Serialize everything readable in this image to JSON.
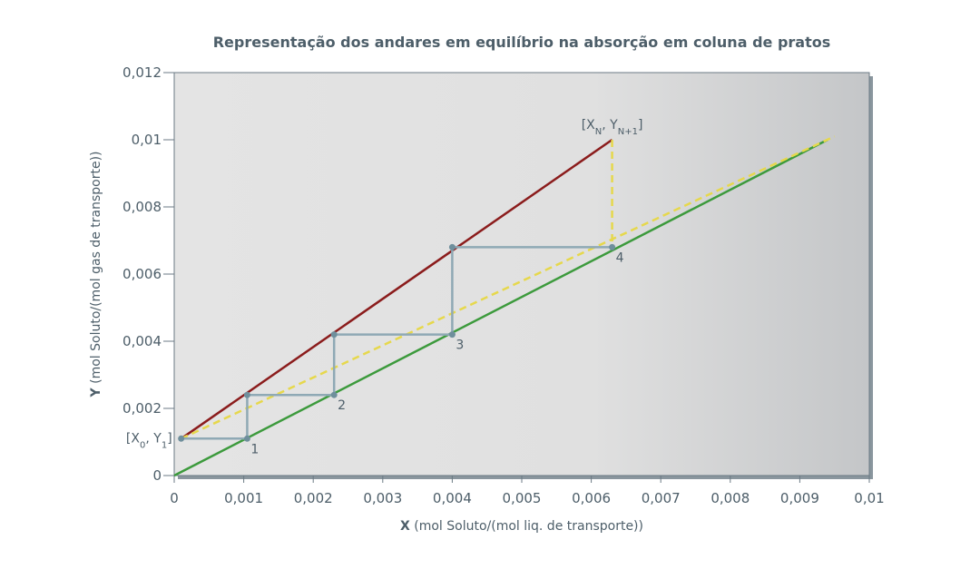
{
  "chart_data": {
    "type": "line",
    "title": "Representação dos andares em equilíbrio na absorção em coluna de pratos",
    "xlabel": [
      "X",
      " (mol Soluto/(mol liq. de transporte))"
    ],
    "ylabel": [
      "Y",
      " (mol Soluto/(mol gas de transporte))"
    ],
    "xlim": [
      0,
      0.01
    ],
    "ylim": [
      0,
      0.012
    ],
    "xticks": [
      0,
      {
        "value": 0.001,
        "label": "0,001"
      },
      {
        "value": 0.002,
        "label": "0,002"
      },
      {
        "value": 0.003,
        "label": "0,003"
      },
      {
        "value": 0.004,
        "label": "0,004"
      },
      {
        "value": 0.005,
        "label": "0,005"
      },
      {
        "value": 0.006,
        "label": "0,006"
      },
      {
        "value": 0.007,
        "label": "0,007"
      },
      {
        "value": 0.008,
        "label": "0,008"
      },
      {
        "value": 0.009,
        "label": "0,009"
      },
      {
        "value": 0.01,
        "label": "0,01"
      }
    ],
    "yticks": [
      0,
      {
        "value": 0.002,
        "label": "0,002"
      },
      {
        "value": 0.004,
        "label": "0,004"
      },
      {
        "value": 0.006,
        "label": "0,006"
      },
      {
        "value": 0.008,
        "label": "0,008"
      },
      {
        "value": 0.01,
        "label": "0,01"
      },
      {
        "value": 0.012,
        "label": "0,012"
      }
    ],
    "series": [
      {
        "color": "#8b1c1c",
        "dash": false,
        "x": [
          0.0001,
          0.0063
        ],
        "values": [
          0.0011,
          0.01
        ]
      },
      {
        "color": "#3c9a3c",
        "dash": false,
        "x": [
          0,
          0.0094
        ],
        "values": [
          0,
          0.01
        ]
      },
      {
        "color": "#e6d84c",
        "dash": true,
        "x": [
          0.0001,
          0.0095
        ],
        "values": [
          0.0011,
          0.0101
        ]
      },
      {
        "color": "#e6d84c",
        "dash": true,
        "x": [
          0.0063,
          0.0063
        ],
        "values": [
          0.01,
          0.0068
        ]
      },
      {
        "color": "#8fa9b5",
        "dash": false,
        "x": [
          0.0001,
          0.00105,
          0.00105,
          0.0023,
          0.0023,
          0.004,
          0.004,
          0.0063
        ],
        "values": [
          0.0011,
          0.0011,
          0.0024,
          0.0024,
          0.0042,
          0.0042,
          0.0068,
          0.0068
        ]
      }
    ],
    "points": {
      "color": "#6f8f9c",
      "x": [
        0.0001,
        0.00105,
        0.00105,
        0.0023,
        0.0023,
        0.004,
        0.004,
        0.0063
      ],
      "values": [
        0.0011,
        0.0011,
        0.0024,
        0.0024,
        0.0042,
        0.0042,
        0.0068,
        0.0068
      ]
    },
    "annotations": [
      {
        "parts": [
          "1"
        ],
        "x": 0.00105,
        "y": 0.0011,
        "anchor": "start"
      },
      {
        "parts": [
          "2"
        ],
        "x": 0.0023,
        "y": 0.0024,
        "anchor": "start"
      },
      {
        "parts": [
          "3"
        ],
        "x": 0.004,
        "y": 0.0042,
        "anchor": "start"
      },
      {
        "parts": [
          "4"
        ],
        "x": 0.0063,
        "y": 0.0068,
        "anchor": "start"
      },
      {
        "parts": [
          "[X",
          "0",
          ", Y",
          "1",
          "]"
        ],
        "x": 0.0001,
        "y": 0.0011,
        "anchor": "end"
      },
      {
        "parts": [
          "[X",
          "N",
          ", Y",
          "N+1",
          "]"
        ],
        "x": 0.0063,
        "y": 0.01,
        "anchor": "middle-top"
      }
    ]
  }
}
